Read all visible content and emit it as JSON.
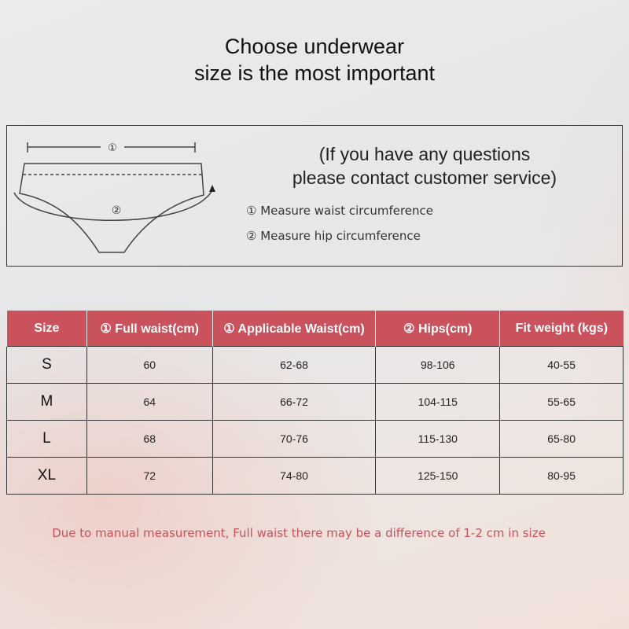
{
  "title_lines": [
    "Choose underwear",
    "size is the most important"
  ],
  "diagram": {
    "marker_1": "①",
    "marker_2": "②"
  },
  "contact_lines": [
    "(If you have any questions",
    "please contact customer service)"
  ],
  "measures": [
    {
      "marker": "①",
      "label": "Measure waist circumference"
    },
    {
      "marker": "②",
      "label": "Measure hip circumference"
    }
  ],
  "table": {
    "headers": [
      "Size",
      "① Full waist(cm)",
      "① Applicable Waist(cm)",
      "② Hips(cm)",
      "Fit weight (kgs)"
    ],
    "rows": [
      [
        "S",
        "60",
        "62-68",
        "98-106",
        "40-55"
      ],
      [
        "M",
        "64",
        "66-72",
        "104-115",
        "55-65"
      ],
      [
        "L",
        "68",
        "70-76",
        "115-130",
        "65-80"
      ],
      [
        "XL",
        "72",
        "74-80",
        "125-150",
        "80-95"
      ]
    ]
  },
  "note": "Due to manual measurement, Full waist there may be a difference of 1-2 cm in size",
  "colors": {
    "header": "#c9525d",
    "note": "#c9525d"
  }
}
